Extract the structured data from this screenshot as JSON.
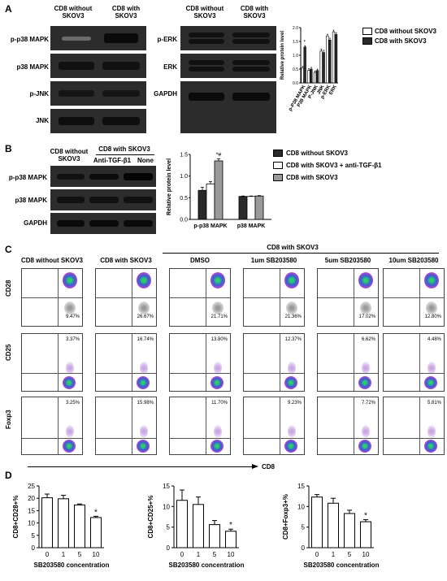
{
  "panel_labels": {
    "a": "A",
    "b": "B",
    "c": "C",
    "d": "D"
  },
  "panel_a": {
    "col_headers": [
      "CD8 without\nSKOV3",
      "CD8 with\nSKOV3"
    ],
    "col_headers_right": [
      "CD8 without\nSKOV3",
      "CD8 with\nSKOV3"
    ],
    "left_rows": [
      "p-p38 MAPK",
      "p38 MAPK",
      "p-JNK",
      "JNK"
    ],
    "right_rows": [
      "p-ERK",
      "ERK",
      "GAPDH"
    ],
    "legend": [
      "CD8 without SKOV3",
      "CD8 with SKOV3"
    ]
  },
  "panel_b": {
    "col_headers": [
      "CD8 without\nSKOV3",
      "CD8 with SKOV3"
    ],
    "sub_headers": [
      "Anti-TGF-β1",
      "None"
    ],
    "rows": [
      "p-p38 MAPK",
      "p38 MAPK",
      "GAPDH"
    ],
    "legend": [
      "CD8 without SKOV3",
      "CD8 with SKOV3 + anti-TGF-β1",
      "CD8 with SKOV3"
    ],
    "annotation": "*#"
  },
  "panel_c": {
    "group_label": "CD8 with SKOV3",
    "columns": [
      "CD8 without SKOV3",
      "CD8 with SKOV3",
      "DMSO",
      "1um SB203580",
      "5um SB203580",
      "10um SB203580"
    ],
    "row_labels": [
      "CD28",
      "CD25",
      "Foxp3"
    ],
    "x_label": "CD8",
    "pct_cd28": [
      "9.47%",
      "26.67%",
      "21.71%",
      "21.36%",
      "17.02%",
      "12.80%"
    ],
    "pct_cd25": [
      "3.37%",
      "16.74%",
      "13.80%",
      "12.37%",
      "6.62%",
      "4.48%"
    ],
    "pct_foxp3": [
      "3.25%",
      "15.98%",
      "11.70%",
      "9.23%",
      "7.72%",
      "5.81%"
    ]
  },
  "chart_data": [
    {
      "type": "bar",
      "panel": "A",
      "categories": [
        "p-P38 MAPK",
        "P38 MAPK",
        "P-JNK",
        "JNK",
        "p-ERK",
        "ERK"
      ],
      "ylabel": "Relative protein level",
      "ylim": [
        0,
        2.0
      ],
      "yticks": [
        "0.0",
        "0.5",
        "1.0",
        "1.5",
        "2.0"
      ],
      "series": [
        {
          "name": "CD8 without SKOV3",
          "values": [
            0.55,
            0.45,
            0.38,
            1.15,
            1.7,
            1.85
          ],
          "errors": [
            0.05,
            0.06,
            0.05,
            0.08,
            0.06,
            0.06
          ],
          "color": "#ffffff"
        },
        {
          "name": "CD8 with SKOV3",
          "values": [
            1.3,
            0.5,
            0.45,
            1.1,
            1.55,
            1.75
          ],
          "errors": [
            0.05,
            0.06,
            0.05,
            0.08,
            0.07,
            0.07
          ],
          "color": "#2a2a2a"
        }
      ],
      "annotations": [
        "*"
      ]
    },
    {
      "type": "bar",
      "panel": "B",
      "categories": [
        "p-p38 MAPK",
        "p38 MAPK"
      ],
      "ylabel": "Relative protein level",
      "ylim": [
        0,
        1.5
      ],
      "yticks": [
        "0.0",
        "0.5",
        "1.0",
        "1.5"
      ],
      "series": [
        {
          "name": "CD8 without SKOV3",
          "values": [
            0.67,
            0.53
          ],
          "errors": [
            0.07,
            0.01
          ],
          "color": "#2a2a2a"
        },
        {
          "name": "CD8 with SKOV3 + anti-TGF-β1",
          "values": [
            0.82,
            0.53
          ],
          "errors": [
            0.05,
            0.01
          ],
          "color": "#ffffff"
        },
        {
          "name": "CD8 with SKOV3",
          "values": [
            1.35,
            0.54
          ],
          "errors": [
            0.05,
            0.01
          ],
          "color": "#9a9a9a"
        }
      ]
    },
    {
      "type": "bar",
      "panel": "D1",
      "categories": [
        "0",
        "1",
        "5",
        "10"
      ],
      "values": [
        20.2,
        19.8,
        17.3,
        12.2
      ],
      "errors": [
        1.5,
        1.4,
        0.4,
        0.5
      ],
      "ylabel": "CD8+CD28+%",
      "xlabel": "SB203580 concentration",
      "ylim": [
        0,
        25
      ],
      "yticks": [
        "0",
        "5",
        "10",
        "15",
        "20",
        "25"
      ],
      "annotations": [
        "*"
      ]
    },
    {
      "type": "bar",
      "panel": "D2",
      "categories": [
        "0",
        "1",
        "5",
        "10"
      ],
      "values": [
        11.5,
        10.5,
        5.6,
        4.0
      ],
      "errors": [
        2.5,
        1.8,
        1.0,
        0.5
      ],
      "ylabel": "CD8+CD25+%",
      "xlabel": "SB203580 concentration",
      "ylim": [
        0,
        15
      ],
      "yticks": [
        "0",
        "5",
        "10",
        "15"
      ],
      "annotations": [
        "*"
      ]
    },
    {
      "type": "bar",
      "panel": "D3",
      "categories": [
        "0",
        "1",
        "5",
        "10"
      ],
      "values": [
        12.3,
        10.8,
        8.3,
        6.3
      ],
      "errors": [
        0.6,
        1.2,
        0.8,
        0.5
      ],
      "ylabel": "CD8+Foxp3+%",
      "xlabel": "SB203580 concentration",
      "ylim": [
        0,
        15
      ],
      "yticks": [
        "0",
        "5",
        "10",
        "15"
      ],
      "annotations": [
        "*"
      ]
    }
  ]
}
